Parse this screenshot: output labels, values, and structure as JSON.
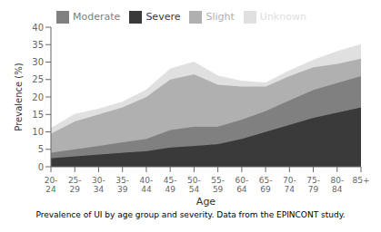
{
  "chart_data": {
    "type": "area",
    "stacked": true,
    "xlabel": "Age",
    "ylabel": "Prevalence (%)",
    "caption": "Prevalence of UI by age group and severity. Data from the EPINCONT study.",
    "categories": [
      "20-\n24",
      "25-\n29",
      "30-\n34",
      "35-\n39",
      "40-\n44",
      "45-\n49",
      "50-\n54",
      "55-\n59",
      "60-\n64",
      "65-\n69",
      "70-\n74",
      "75-\n79",
      "80-\n84",
      "85+"
    ],
    "series": [
      {
        "name": "Severe",
        "color": "#3a3a3a",
        "values": [
          2.5,
          3.0,
          3.5,
          4.0,
          4.5,
          5.5,
          6.0,
          6.5,
          8.0,
          10.0,
          12.0,
          14.0,
          15.5,
          17.0
        ]
      },
      {
        "name": "Moderate",
        "color": "#808080",
        "values": [
          1.5,
          2.0,
          2.5,
          3.0,
          3.5,
          5.0,
          5.5,
          5.0,
          5.5,
          6.0,
          7.0,
          8.0,
          8.5,
          9.0
        ]
      },
      {
        "name": "Slight",
        "color": "#b0b0b0",
        "values": [
          5.5,
          8.0,
          9.0,
          10.0,
          12.0,
          14.5,
          15.0,
          12.0,
          9.5,
          7.0,
          7.0,
          6.5,
          5.5,
          5.0
        ]
      },
      {
        "name": "Unknown",
        "color": "#e0e0e0",
        "values": [
          1.5,
          2.0,
          1.5,
          1.5,
          2.0,
          3.0,
          3.5,
          2.5,
          1.5,
          1.0,
          1.5,
          2.0,
          3.5,
          4.0
        ]
      }
    ],
    "ylim": [
      0,
      40
    ],
    "yticks": [
      0,
      5,
      10,
      15,
      20,
      25,
      30,
      35,
      40
    ],
    "grid": false,
    "legend": "top"
  }
}
